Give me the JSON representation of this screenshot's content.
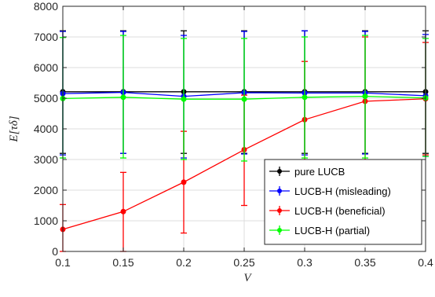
{
  "chart_data": {
    "type": "line",
    "xlabel": "V",
    "ylabel": "E[τδ]",
    "xlim": [
      0.1,
      0.4
    ],
    "ylim": [
      0,
      8000
    ],
    "grid": true,
    "legend_position": "bottom-right",
    "x": [
      0.1,
      0.15,
      0.2,
      0.25,
      0.3,
      0.35,
      0.4
    ],
    "x_ticks": [
      "0.1",
      "0.15",
      "0.2",
      "0.25",
      "0.3",
      "0.35",
      "0.4"
    ],
    "y_ticks": [
      "0",
      "1000",
      "2000",
      "3000",
      "4000",
      "5000",
      "6000",
      "7000",
      "8000"
    ],
    "series": [
      {
        "name": "pure LUCB",
        "color": "#000000",
        "values": [
          5210,
          5210,
          5210,
          5210,
          5210,
          5210,
          5210
        ],
        "err_low": [
          3200,
          3200,
          3200,
          3200,
          3200,
          3200,
          3200
        ],
        "err_high": [
          7200,
          7200,
          7200,
          7200,
          7200,
          7200,
          7200
        ]
      },
      {
        "name": "LUCB-H (misleading)",
        "color": "#0000ff",
        "values": [
          5150,
          5190,
          5060,
          5180,
          5170,
          5170,
          5080
        ],
        "err_low": [
          3150,
          3200,
          3050,
          3180,
          3150,
          3180,
          3100
        ],
        "err_high": [
          7180,
          7180,
          7050,
          7180,
          7200,
          7180,
          7080
        ]
      },
      {
        "name": "LUCB-H (beneficial)",
        "color": "#ff0000",
        "values": [
          720,
          1300,
          2260,
          3320,
          4300,
          4900,
          4980
        ],
        "err_low": [
          0,
          0,
          600,
          1500,
          2400,
          2800,
          3150
        ],
        "err_high": [
          1530,
          2580,
          3920,
          5100,
          6200,
          7000,
          6820
        ]
      },
      {
        "name": "LUCB-H (partial)",
        "color": "#00ff00",
        "values": [
          4990,
          5030,
          4970,
          4970,
          5030,
          5060,
          5010
        ],
        "err_low": [
          3050,
          3050,
          3000,
          2950,
          3050,
          3050,
          3100
        ],
        "err_high": [
          6980,
          7050,
          6950,
          6950,
          7000,
          7050,
          6950
        ]
      }
    ]
  }
}
